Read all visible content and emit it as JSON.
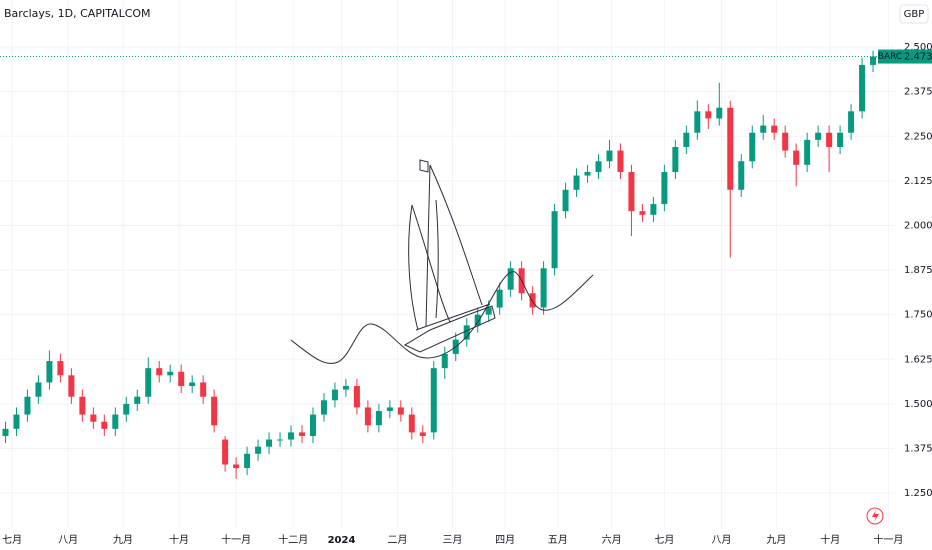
{
  "chart_data": {
    "type": "candlestick",
    "title": "Barclays, 1D, CAPITALCOM",
    "currency": "GBP",
    "symbol": "BARC",
    "up_color": "#089981",
    "down_color": "#f23645",
    "grid": true,
    "xlim": [
      -0.5,
      81
    ],
    "xticks": [
      {
        "value": 0.6,
        "label": "七月"
      },
      {
        "value": 5.7,
        "label": "八月"
      },
      {
        "value": 10.7,
        "label": "九月"
      },
      {
        "value": 15.8,
        "label": "十月"
      },
      {
        "value": 21,
        "label": "十一月"
      },
      {
        "value": 26.2,
        "label": "十二月"
      },
      {
        "value": 30.6,
        "label": "2024"
      },
      {
        "value": 35.7,
        "label": "二月"
      },
      {
        "value": 40.7,
        "label": "三月"
      },
      {
        "value": 45.5,
        "label": "四月"
      },
      {
        "value": 50.3,
        "label": "五月"
      },
      {
        "value": 55.2,
        "label": "六月"
      },
      {
        "value": 60,
        "label": "七月"
      },
      {
        "value": 65.2,
        "label": "八月"
      },
      {
        "value": 70.2,
        "label": "九月"
      },
      {
        "value": 75.1,
        "label": "十月"
      },
      {
        "value": 80.4,
        "label": "十一月"
      }
    ],
    "ylim": [
      1.152,
      2.632
    ],
    "yticks": [
      {
        "value": 1.25,
        "label": "1.2500"
      },
      {
        "value": 1.375,
        "label": "1.3750"
      },
      {
        "value": 1.5,
        "label": "1.5000"
      },
      {
        "value": 1.625,
        "label": "1.6250"
      },
      {
        "value": 1.75,
        "label": "1.7500"
      },
      {
        "value": 1.875,
        "label": "1.8750"
      },
      {
        "value": 2,
        "label": "2.0000"
      },
      {
        "value": 2.125,
        "label": "2.1250"
      },
      {
        "value": 2.25,
        "label": "2.2500"
      },
      {
        "value": 2.375,
        "label": "2.3750"
      },
      {
        "value": 2.5,
        "label": "2.5000"
      }
    ],
    "open": [
      1.41,
      1.43,
      1.47,
      1.52,
      1.56,
      1.62,
      1.58,
      1.52,
      1.47,
      1.45,
      1.43,
      1.47,
      1.5,
      1.52,
      1.6,
      1.58,
      1.59,
      1.55,
      1.56,
      1.52,
      1.4,
      1.33,
      1.32,
      1.36,
      1.38,
      1.4,
      1.4,
      1.42,
      1.41,
      1.47,
      1.51,
      1.54,
      1.55,
      1.49,
      1.44,
      1.48,
      1.49,
      1.47,
      1.42,
      1.42,
      1.6,
      1.64,
      1.68,
      1.72,
      1.75,
      1.77,
      1.82,
      1.88,
      1.81,
      1.77,
      1.88,
      2.04,
      2.1,
      2.14,
      2.15,
      2.18,
      2.21,
      2.15,
      2.04,
      2.03,
      2.06,
      2.15,
      2.22,
      2.26,
      2.32,
      2.3,
      2.33,
      2.1,
      2.18,
      2.26,
      2.28,
      2.26,
      2.21,
      2.17,
      2.24,
      2.26,
      2.22,
      2.26,
      2.32,
      2.45
    ],
    "high": [
      1.45,
      1.49,
      1.54,
      1.58,
      1.65,
      1.64,
      1.6,
      1.54,
      1.49,
      1.47,
      1.49,
      1.52,
      1.54,
      1.63,
      1.62,
      1.61,
      1.61,
      1.58,
      1.58,
      1.54,
      1.41,
      1.35,
      1.38,
      1.4,
      1.42,
      1.42,
      1.44,
      1.44,
      1.49,
      1.53,
      1.56,
      1.57,
      1.57,
      1.51,
      1.5,
      1.51,
      1.51,
      1.49,
      1.44,
      1.62,
      1.66,
      1.7,
      1.74,
      1.77,
      1.79,
      1.84,
      1.9,
      1.9,
      1.83,
      1.9,
      2.06,
      2.12,
      2.16,
      2.17,
      2.2,
      2.24,
      2.23,
      2.17,
      2.06,
      2.08,
      2.17,
      2.24,
      2.28,
      2.35,
      2.34,
      2.4,
      2.35,
      2.2,
      2.28,
      2.31,
      2.3,
      2.28,
      2.23,
      2.26,
      2.28,
      2.28,
      2.28,
      2.34,
      2.47,
      2.49
    ],
    "low": [
      1.39,
      1.41,
      1.45,
      1.5,
      1.54,
      1.56,
      1.5,
      1.45,
      1.43,
      1.41,
      1.41,
      1.45,
      1.48,
      1.5,
      1.56,
      1.56,
      1.53,
      1.53,
      1.5,
      1.42,
      1.31,
      1.29,
      1.3,
      1.34,
      1.36,
      1.38,
      1.38,
      1.39,
      1.39,
      1.45,
      1.49,
      1.52,
      1.47,
      1.42,
      1.42,
      1.46,
      1.45,
      1.4,
      1.39,
      1.4,
      1.57,
      1.62,
      1.66,
      1.7,
      1.73,
      1.75,
      1.8,
      1.79,
      1.75,
      1.75,
      1.86,
      2.02,
      2.08,
      2.12,
      2.13,
      2.16,
      2.13,
      1.97,
      2.01,
      2.01,
      2.04,
      2.13,
      2.2,
      2.24,
      2.27,
      2.28,
      1.91,
      2.08,
      2.16,
      2.24,
      2.24,
      2.19,
      2.11,
      2.15,
      2.22,
      2.15,
      2.2,
      2.24,
      2.3,
      2.43
    ],
    "close": [
      1.43,
      1.47,
      1.52,
      1.56,
      1.62,
      1.58,
      1.52,
      1.47,
      1.45,
      1.43,
      1.47,
      1.5,
      1.52,
      1.6,
      1.58,
      1.59,
      1.55,
      1.56,
      1.52,
      1.44,
      1.33,
      1.32,
      1.36,
      1.38,
      1.4,
      1.4,
      1.42,
      1.41,
      1.47,
      1.51,
      1.54,
      1.55,
      1.49,
      1.44,
      1.48,
      1.49,
      1.47,
      1.42,
      1.41,
      1.6,
      1.64,
      1.68,
      1.72,
      1.75,
      1.77,
      1.82,
      1.88,
      1.81,
      1.77,
      1.88,
      2.04,
      2.1,
      2.14,
      2.15,
      2.18,
      2.21,
      2.15,
      2.04,
      2.03,
      2.06,
      2.15,
      2.22,
      2.26,
      2.32,
      2.3,
      2.33,
      2.1,
      2.18,
      2.26,
      2.28,
      2.26,
      2.21,
      2.17,
      2.24,
      2.26,
      2.22,
      2.26,
      2.32,
      2.45,
      2.4735
    ]
  }
}
